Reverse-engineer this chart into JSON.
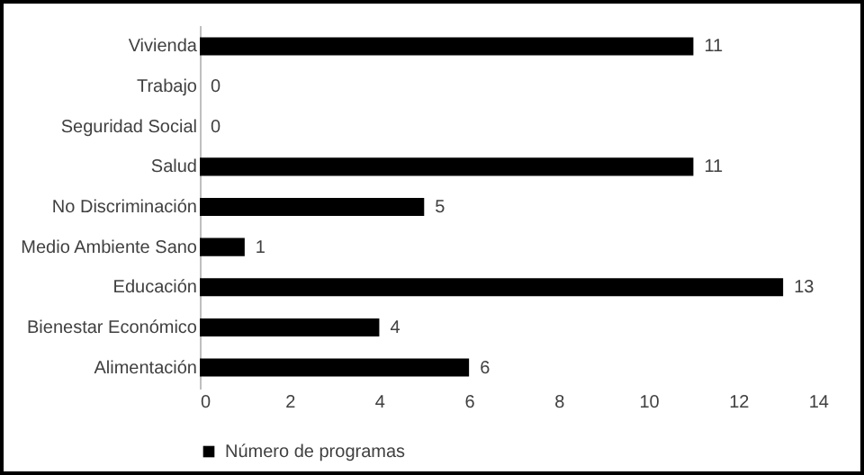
{
  "chart_data": {
    "type": "bar",
    "orientation": "horizontal",
    "categories": [
      "Vivienda",
      "Trabajo",
      "Seguridad Social",
      "Salud",
      "No Discriminación",
      "Medio Ambiente Sano",
      "Educación",
      "Bienestar Económico",
      "Alimentación"
    ],
    "series": [
      {
        "name": "Número de programas",
        "color": "#000000",
        "values": [
          11,
          0,
          0,
          11,
          5,
          1,
          13,
          4,
          6
        ]
      }
    ],
    "xlim": [
      0,
      14
    ],
    "xticks": [
      0,
      2,
      4,
      6,
      8,
      10,
      12,
      14
    ],
    "grid": false,
    "data_labels": true,
    "legend": "bottom"
  }
}
